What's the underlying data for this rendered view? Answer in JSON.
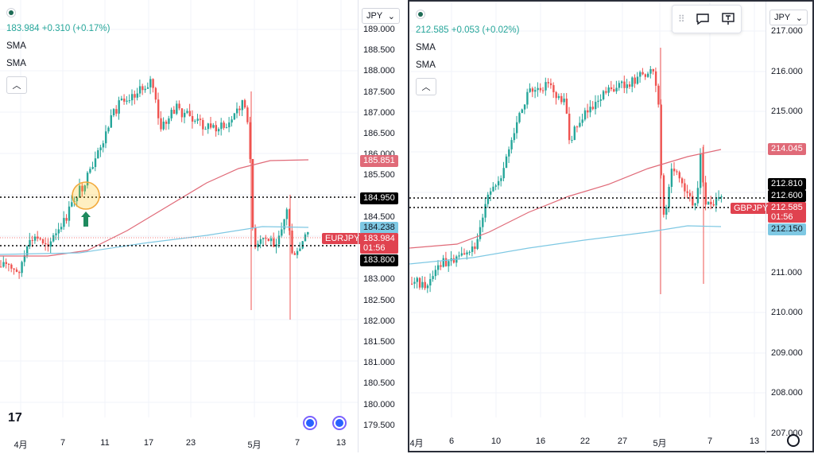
{
  "left": {
    "quote": "183.984 +0.310 (+0.17%)",
    "ind1": "SMA",
    "ind2": "SMA",
    "currency": "JPY",
    "symbol": "EURJPY",
    "ticks": [
      "189.000",
      "188.500",
      "188.000",
      "187.500",
      "187.000",
      "186.500",
      "186.000",
      "185.500",
      "185.000",
      "184.500",
      "184.000",
      "183.500",
      "183.000",
      "182.500",
      "182.000",
      "181.500",
      "181.000",
      "180.500",
      "180.000",
      "179.500"
    ],
    "tags": {
      "sma_red": "185.851",
      "level_hi": "184.950",
      "sma_blue": "184.238",
      "price": "183.984",
      "countdown": "01:56",
      "level_lo": "183.800"
    },
    "xlabels": [
      "4月",
      "7",
      "11",
      "17",
      "23",
      "5月",
      "7",
      "13"
    ]
  },
  "right": {
    "quote": "212.585 +0.053 (+0.02%)",
    "ind1": "SMA",
    "ind2": "SMA",
    "currency": "JPY",
    "symbol": "GBPJPY",
    "ticks": [
      "217.000",
      "216.000",
      "215.000",
      "214.000",
      "213.000",
      "212.000",
      "211.000",
      "210.000",
      "209.000",
      "208.000",
      "207.000"
    ],
    "tags": {
      "sma_red": "214.045",
      "level_hi": "212.810",
      "level_mid": "212.600",
      "price": "212.585",
      "countdown": "01:56",
      "sma_blue": "212.150"
    },
    "xlabels": [
      "4月",
      "6",
      "10",
      "16",
      "22",
      "27",
      "5月",
      "7",
      "13"
    ]
  },
  "colors": {
    "up": "#26a69a",
    "down": "#ef5350",
    "sma_red": "#e06a78",
    "sma_blue": "#7ec8e3"
  },
  "icons": [
    "chart-dot-icon",
    "collapse-chevron-icon",
    "comment-icon",
    "text-note-icon",
    "tradingview-logo",
    "settings-gear-icon"
  ]
}
